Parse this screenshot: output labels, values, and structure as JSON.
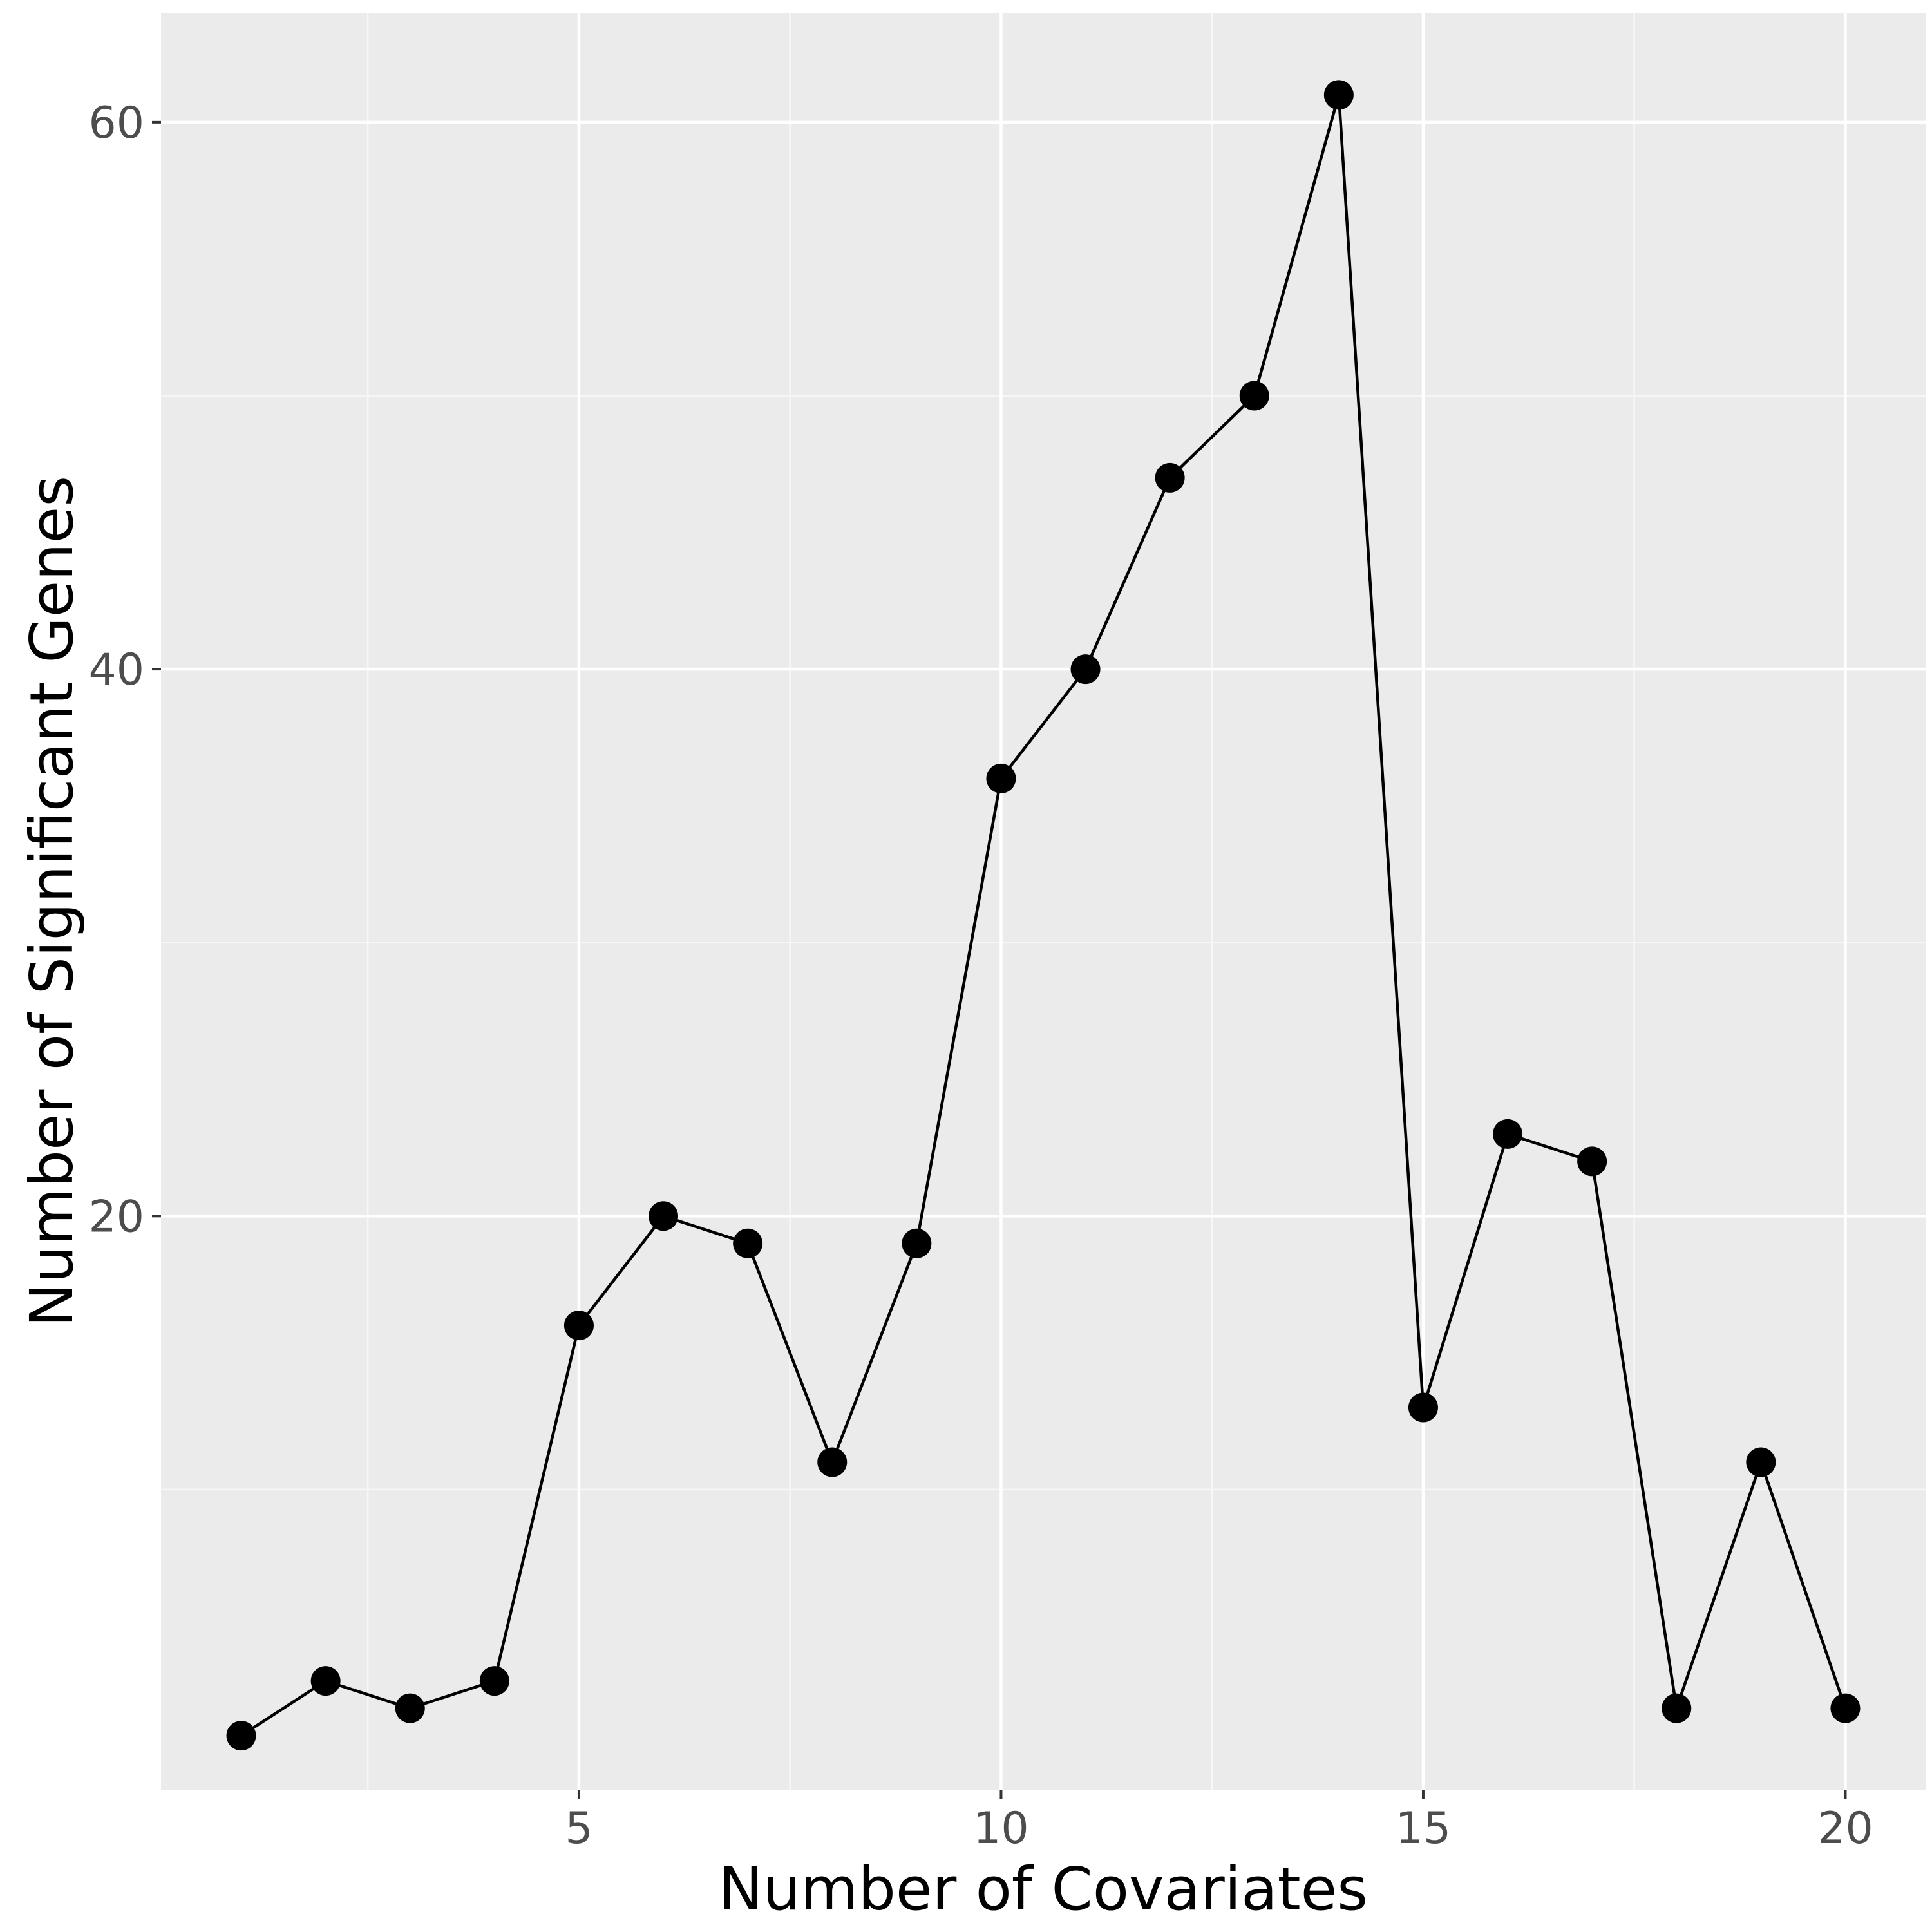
{
  "chart_data": {
    "type": "line",
    "x": [
      1,
      2,
      3,
      4,
      5,
      6,
      7,
      8,
      9,
      10,
      11,
      12,
      13,
      14,
      15,
      16,
      17,
      18,
      19,
      20
    ],
    "series": [
      {
        "values": [
          1,
          3,
          2,
          3,
          16,
          20,
          19,
          11,
          19,
          36,
          40,
          47,
          50,
          61,
          13,
          23,
          22,
          2,
          11,
          2
        ]
      }
    ],
    "xlabel": "Number of Covariates",
    "ylabel": "Number of Significant Genes",
    "xlim": [
      0.05,
      20.95
    ],
    "ylim": [
      -1.0,
      64.0
    ],
    "x_ticks": [
      5,
      10,
      15,
      20
    ],
    "x_tick_labels": [
      "5",
      "10",
      "15",
      "20"
    ],
    "y_ticks": [
      20,
      40,
      60
    ],
    "y_tick_labels": [
      "20",
      "40",
      "60"
    ],
    "grid": true,
    "colors": {
      "panel_background": "#ebebeb",
      "grid_major": "#ffffff",
      "grid_minor": "#f7f7f7",
      "line": "#000000",
      "point": "#000000"
    }
  }
}
